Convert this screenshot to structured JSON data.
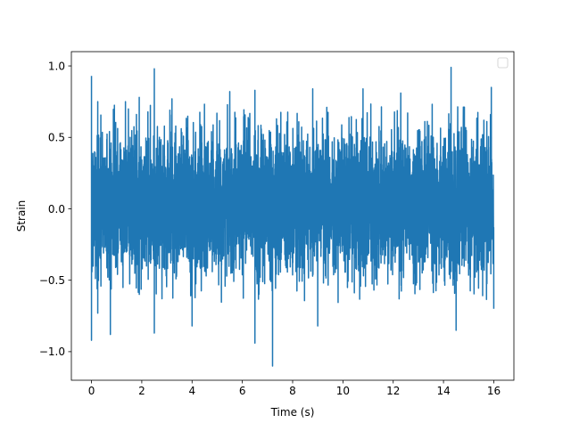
{
  "chart_data": {
    "type": "line",
    "xlabel": "Time (s)",
    "ylabel": "Strain",
    "xlim": [
      -0.8,
      16.8
    ],
    "ylim": [
      -1.2,
      1.1
    ],
    "x_ticks": [
      0,
      2,
      4,
      6,
      8,
      10,
      12,
      14,
      16
    ],
    "x_tick_labels": [
      "0",
      "2",
      "4",
      "6",
      "8",
      "10",
      "12",
      "14",
      "16"
    ],
    "y_ticks": [
      -1.0,
      -0.5,
      0.0,
      0.5,
      1.0
    ],
    "y_tick_labels": [
      "−1.0",
      "−0.5",
      "0.0",
      "0.5",
      "1.0"
    ],
    "grid": false,
    "legend": {
      "placement": "upper-right",
      "entries": []
    },
    "series": [
      {
        "color": "#1f77b4",
        "x_range": [
          0,
          16
        ],
        "summary": {
          "typical_min": -0.55,
          "typical_max": 0.62
        },
        "peaks": [
          {
            "x": 0.0,
            "y": 0.93
          },
          {
            "x": 0.0,
            "y": -0.92
          },
          {
            "x": 0.25,
            "y": 0.75
          },
          {
            "x": 0.25,
            "y": -0.73
          },
          {
            "x": 0.75,
            "y": -0.88
          },
          {
            "x": 1.35,
            "y": 0.75
          },
          {
            "x": 1.9,
            "y": 0.78
          },
          {
            "x": 2.5,
            "y": 0.98
          },
          {
            "x": 2.5,
            "y": -0.87
          },
          {
            "x": 3.2,
            "y": 0.77
          },
          {
            "x": 4.0,
            "y": -0.82
          },
          {
            "x": 5.5,
            "y": 0.82
          },
          {
            "x": 6.5,
            "y": 0.83
          },
          {
            "x": 6.5,
            "y": -0.94
          },
          {
            "x": 7.2,
            "y": -1.1
          },
          {
            "x": 8.8,
            "y": 0.84
          },
          {
            "x": 9.0,
            "y": -0.82
          },
          {
            "x": 10.8,
            "y": 0.84
          },
          {
            "x": 12.3,
            "y": 0.81
          },
          {
            "x": 14.3,
            "y": 0.99
          },
          {
            "x": 14.5,
            "y": -0.85
          },
          {
            "x": 15.9,
            "y": 0.85
          },
          {
            "x": 16.0,
            "y": -0.7
          }
        ]
      }
    ]
  }
}
